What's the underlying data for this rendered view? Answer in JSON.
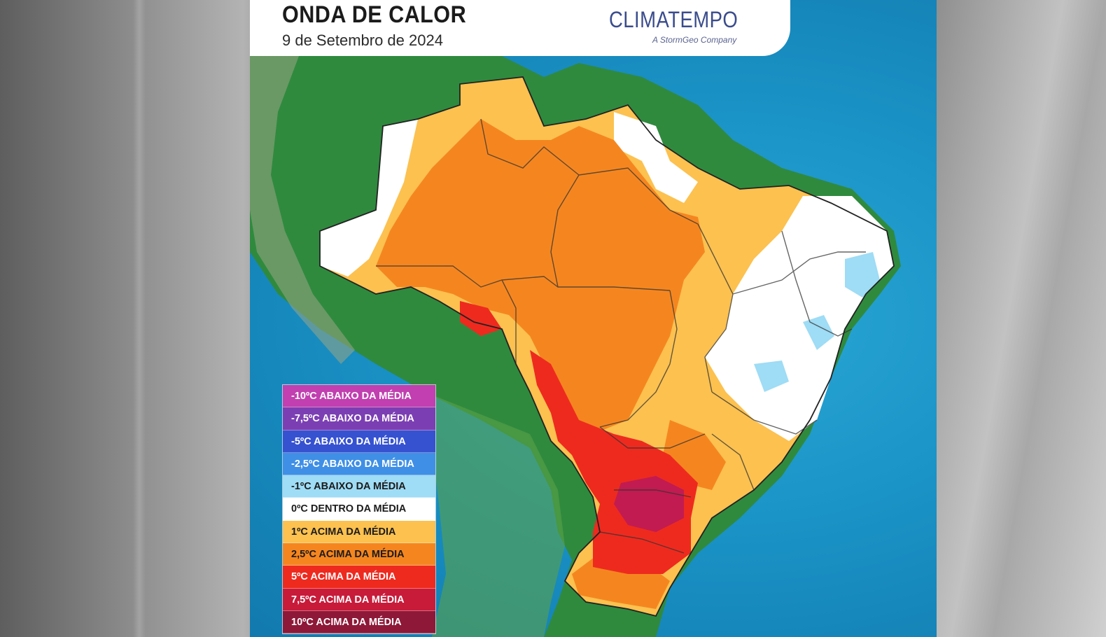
{
  "header": {
    "title": "ONDA DE CALOR",
    "date": "9 de Setembro de 2024"
  },
  "brand": {
    "name": "CLIMATEMPO",
    "tagline": "A StormGeo Company"
  },
  "legend": {
    "items": [
      {
        "label": "-10ºC ABAIXO DA MÉDIA",
        "color": "#c13fb0",
        "text_color": "#ffffff"
      },
      {
        "label": "-7,5ºC ABAIXO DA MÉDIA",
        "color": "#7b3fb3",
        "text_color": "#ffffff"
      },
      {
        "label": "-5ºC ABAIXO DA MÉDIA",
        "color": "#3652d1",
        "text_color": "#ffffff"
      },
      {
        "label": "-2,5ºC ABAIXO DA MÉDIA",
        "color": "#3f8fe6",
        "text_color": "#ffffff"
      },
      {
        "label": "-1ºC ABAIXO DA MÉDIA",
        "color": "#9fdcf5",
        "text_color": "#1b1b1b"
      },
      {
        "label": "0ºC DENTRO DA MÉDIA",
        "color": "#ffffff",
        "text_color": "#1b1b1b"
      },
      {
        "label": "1ºC ACIMA DA MÉDIA",
        "color": "#fcc14f",
        "text_color": "#1b1b1b"
      },
      {
        "label": "2,5ºC ACIMA DA MÉDIA",
        "color": "#f5861f",
        "text_color": "#1b1b1b"
      },
      {
        "label": "5ºC ACIMA DA MÉDIA",
        "color": "#ee2a1f",
        "text_color": "#ffffff"
      },
      {
        "label": "7,5ºC ACIMA DA MÉDIA",
        "color": "#c81b3a",
        "text_color": "#ffffff"
      },
      {
        "label": "10ºC ACIMA DA MÉDIA",
        "color": "#8e1838",
        "text_color": "#ffffff"
      }
    ]
  },
  "colors": {
    "ocean": "#1a93c6",
    "land": "#2f8a3e",
    "anomaly_white": "#ffffff",
    "anomaly_1": "#fcc14f",
    "anomaly_2_5": "#f5861f",
    "anomaly_5": "#ee2a1f",
    "anomaly_7_5": "#b9195a",
    "anomaly_minus_1": "#9fdcf5"
  }
}
